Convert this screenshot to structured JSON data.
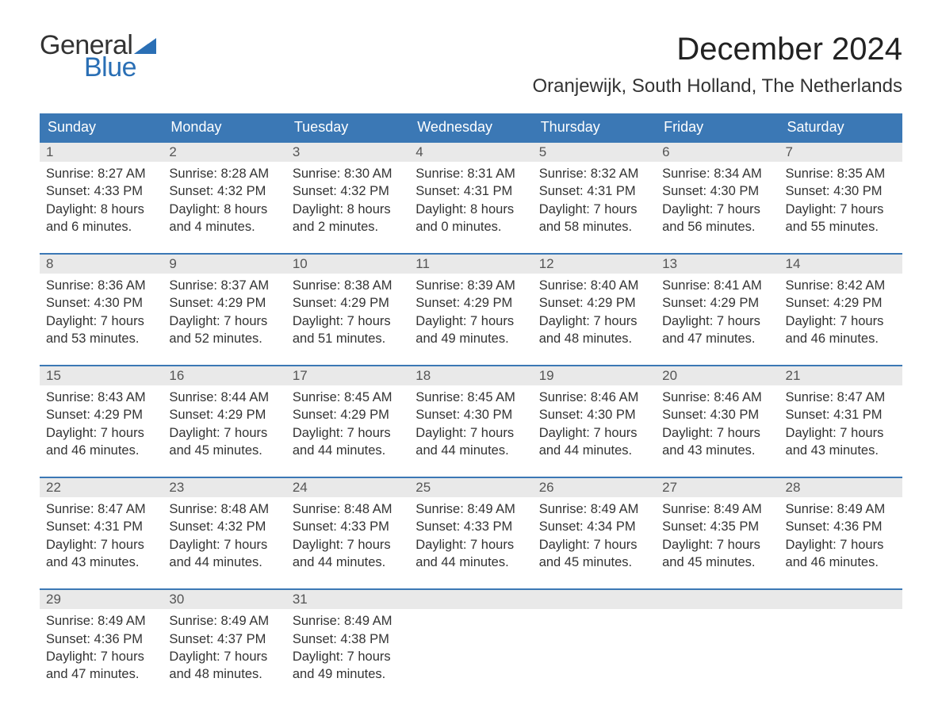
{
  "logo": {
    "text_general": "General",
    "text_blue": "Blue",
    "flag_color": "#2a6fb5"
  },
  "title": "December 2024",
  "location": "Oranjewijk, South Holland, The Netherlands",
  "colors": {
    "header_bg": "#3b78b5",
    "header_text": "#ffffff",
    "daynum_bg": "#e9e9e9",
    "week_border": "#3b78b5",
    "body_text": "#333333",
    "logo_blue": "#2a6fb5",
    "background": "#ffffff"
  },
  "typography": {
    "title_fontsize": 40,
    "location_fontsize": 24,
    "weekday_fontsize": 18,
    "daynum_fontsize": 17,
    "cell_fontsize": 16.5,
    "logo_fontsize": 34
  },
  "weekdays": [
    "Sunday",
    "Monday",
    "Tuesday",
    "Wednesday",
    "Thursday",
    "Friday",
    "Saturday"
  ],
  "weeks": [
    [
      {
        "n": "1",
        "sr": "Sunrise: 8:27 AM",
        "ss": "Sunset: 4:33 PM",
        "d1": "Daylight: 8 hours",
        "d2": "and 6 minutes."
      },
      {
        "n": "2",
        "sr": "Sunrise: 8:28 AM",
        "ss": "Sunset: 4:32 PM",
        "d1": "Daylight: 8 hours",
        "d2": "and 4 minutes."
      },
      {
        "n": "3",
        "sr": "Sunrise: 8:30 AM",
        "ss": "Sunset: 4:32 PM",
        "d1": "Daylight: 8 hours",
        "d2": "and 2 minutes."
      },
      {
        "n": "4",
        "sr": "Sunrise: 8:31 AM",
        "ss": "Sunset: 4:31 PM",
        "d1": "Daylight: 8 hours",
        "d2": "and 0 minutes."
      },
      {
        "n": "5",
        "sr": "Sunrise: 8:32 AM",
        "ss": "Sunset: 4:31 PM",
        "d1": "Daylight: 7 hours",
        "d2": "and 58 minutes."
      },
      {
        "n": "6",
        "sr": "Sunrise: 8:34 AM",
        "ss": "Sunset: 4:30 PM",
        "d1": "Daylight: 7 hours",
        "d2": "and 56 minutes."
      },
      {
        "n": "7",
        "sr": "Sunrise: 8:35 AM",
        "ss": "Sunset: 4:30 PM",
        "d1": "Daylight: 7 hours",
        "d2": "and 55 minutes."
      }
    ],
    [
      {
        "n": "8",
        "sr": "Sunrise: 8:36 AM",
        "ss": "Sunset: 4:30 PM",
        "d1": "Daylight: 7 hours",
        "d2": "and 53 minutes."
      },
      {
        "n": "9",
        "sr": "Sunrise: 8:37 AM",
        "ss": "Sunset: 4:29 PM",
        "d1": "Daylight: 7 hours",
        "d2": "and 52 minutes."
      },
      {
        "n": "10",
        "sr": "Sunrise: 8:38 AM",
        "ss": "Sunset: 4:29 PM",
        "d1": "Daylight: 7 hours",
        "d2": "and 51 minutes."
      },
      {
        "n": "11",
        "sr": "Sunrise: 8:39 AM",
        "ss": "Sunset: 4:29 PM",
        "d1": "Daylight: 7 hours",
        "d2": "and 49 minutes."
      },
      {
        "n": "12",
        "sr": "Sunrise: 8:40 AM",
        "ss": "Sunset: 4:29 PM",
        "d1": "Daylight: 7 hours",
        "d2": "and 48 minutes."
      },
      {
        "n": "13",
        "sr": "Sunrise: 8:41 AM",
        "ss": "Sunset: 4:29 PM",
        "d1": "Daylight: 7 hours",
        "d2": "and 47 minutes."
      },
      {
        "n": "14",
        "sr": "Sunrise: 8:42 AM",
        "ss": "Sunset: 4:29 PM",
        "d1": "Daylight: 7 hours",
        "d2": "and 46 minutes."
      }
    ],
    [
      {
        "n": "15",
        "sr": "Sunrise: 8:43 AM",
        "ss": "Sunset: 4:29 PM",
        "d1": "Daylight: 7 hours",
        "d2": "and 46 minutes."
      },
      {
        "n": "16",
        "sr": "Sunrise: 8:44 AM",
        "ss": "Sunset: 4:29 PM",
        "d1": "Daylight: 7 hours",
        "d2": "and 45 minutes."
      },
      {
        "n": "17",
        "sr": "Sunrise: 8:45 AM",
        "ss": "Sunset: 4:29 PM",
        "d1": "Daylight: 7 hours",
        "d2": "and 44 minutes."
      },
      {
        "n": "18",
        "sr": "Sunrise: 8:45 AM",
        "ss": "Sunset: 4:30 PM",
        "d1": "Daylight: 7 hours",
        "d2": "and 44 minutes."
      },
      {
        "n": "19",
        "sr": "Sunrise: 8:46 AM",
        "ss": "Sunset: 4:30 PM",
        "d1": "Daylight: 7 hours",
        "d2": "and 44 minutes."
      },
      {
        "n": "20",
        "sr": "Sunrise: 8:46 AM",
        "ss": "Sunset: 4:30 PM",
        "d1": "Daylight: 7 hours",
        "d2": "and 43 minutes."
      },
      {
        "n": "21",
        "sr": "Sunrise: 8:47 AM",
        "ss": "Sunset: 4:31 PM",
        "d1": "Daylight: 7 hours",
        "d2": "and 43 minutes."
      }
    ],
    [
      {
        "n": "22",
        "sr": "Sunrise: 8:47 AM",
        "ss": "Sunset: 4:31 PM",
        "d1": "Daylight: 7 hours",
        "d2": "and 43 minutes."
      },
      {
        "n": "23",
        "sr": "Sunrise: 8:48 AM",
        "ss": "Sunset: 4:32 PM",
        "d1": "Daylight: 7 hours",
        "d2": "and 44 minutes."
      },
      {
        "n": "24",
        "sr": "Sunrise: 8:48 AM",
        "ss": "Sunset: 4:33 PM",
        "d1": "Daylight: 7 hours",
        "d2": "and 44 minutes."
      },
      {
        "n": "25",
        "sr": "Sunrise: 8:49 AM",
        "ss": "Sunset: 4:33 PM",
        "d1": "Daylight: 7 hours",
        "d2": "and 44 minutes."
      },
      {
        "n": "26",
        "sr": "Sunrise: 8:49 AM",
        "ss": "Sunset: 4:34 PM",
        "d1": "Daylight: 7 hours",
        "d2": "and 45 minutes."
      },
      {
        "n": "27",
        "sr": "Sunrise: 8:49 AM",
        "ss": "Sunset: 4:35 PM",
        "d1": "Daylight: 7 hours",
        "d2": "and 45 minutes."
      },
      {
        "n": "28",
        "sr": "Sunrise: 8:49 AM",
        "ss": "Sunset: 4:36 PM",
        "d1": "Daylight: 7 hours",
        "d2": "and 46 minutes."
      }
    ],
    [
      {
        "n": "29",
        "sr": "Sunrise: 8:49 AM",
        "ss": "Sunset: 4:36 PM",
        "d1": "Daylight: 7 hours",
        "d2": "and 47 minutes."
      },
      {
        "n": "30",
        "sr": "Sunrise: 8:49 AM",
        "ss": "Sunset: 4:37 PM",
        "d1": "Daylight: 7 hours",
        "d2": "and 48 minutes."
      },
      {
        "n": "31",
        "sr": "Sunrise: 8:49 AM",
        "ss": "Sunset: 4:38 PM",
        "d1": "Daylight: 7 hours",
        "d2": "and 49 minutes."
      },
      {
        "n": "",
        "sr": "",
        "ss": "",
        "d1": "",
        "d2": ""
      },
      {
        "n": "",
        "sr": "",
        "ss": "",
        "d1": "",
        "d2": ""
      },
      {
        "n": "",
        "sr": "",
        "ss": "",
        "d1": "",
        "d2": ""
      },
      {
        "n": "",
        "sr": "",
        "ss": "",
        "d1": "",
        "d2": ""
      }
    ]
  ]
}
